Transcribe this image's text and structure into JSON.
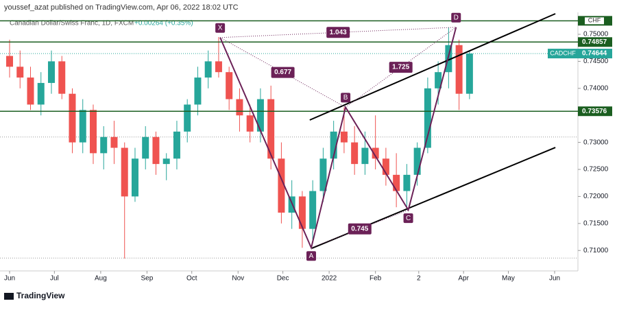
{
  "header": {
    "publisher": "youssef_azat published on TradingView.com, Apr 06, 2022 18:02 UTC",
    "brand": "TradingView"
  },
  "chart_data": {
    "type": "candlestick",
    "title": "Canadian Dollar/Swiss Franc, 1D, FXCM",
    "change": "+0.00264 (+0.35%)",
    "x": [
      0,
      7,
      14,
      21,
      28,
      35,
      42,
      49,
      56,
      63,
      70,
      77,
      84,
      91,
      98,
      105,
      112,
      119,
      126,
      133,
      140,
      147,
      154,
      161,
      168,
      175,
      182,
      189,
      196,
      203,
      210,
      217,
      224,
      231,
      238,
      245,
      252,
      259,
      266,
      273,
      280,
      287,
      294,
      301,
      308
    ],
    "open": [
      0.746,
      0.744,
      0.742,
      0.737,
      0.741,
      0.745,
      0.739,
      0.73,
      0.736,
      0.728,
      0.731,
      0.729,
      0.72,
      0.727,
      0.731,
      0.726,
      0.727,
      0.732,
      0.737,
      0.742,
      0.745,
      0.743,
      0.738,
      0.735,
      0.732,
      0.738,
      0.727,
      0.717,
      0.72,
      0.714,
      0.721,
      0.727,
      0.732,
      0.73,
      0.726,
      0.729,
      0.727,
      0.724,
      0.721,
      0.724,
      0.729,
      0.74,
      0.743,
      0.748,
      0.739
    ],
    "high": [
      0.749,
      0.747,
      0.744,
      0.743,
      0.747,
      0.746,
      0.74,
      0.738,
      0.737,
      0.733,
      0.734,
      0.73,
      0.729,
      0.733,
      0.732,
      0.728,
      0.734,
      0.738,
      0.744,
      0.747,
      0.7495,
      0.744,
      0.74,
      0.737,
      0.74,
      0.7405,
      0.73,
      0.723,
      0.721,
      0.723,
      0.729,
      0.734,
      0.7365,
      0.733,
      0.732,
      0.735,
      0.729,
      0.728,
      0.726,
      0.73,
      0.742,
      0.745,
      0.7513,
      0.749,
      0.747
    ],
    "low": [
      0.742,
      0.74,
      0.736,
      0.735,
      0.739,
      0.738,
      0.728,
      0.728,
      0.726,
      0.725,
      0.726,
      0.7085,
      0.719,
      0.725,
      0.724,
      0.723,
      0.725,
      0.73,
      0.735,
      0.74,
      0.742,
      0.736,
      0.732,
      0.73,
      0.73,
      0.725,
      0.715,
      0.714,
      0.7105,
      0.712,
      0.719,
      0.725,
      0.728,
      0.724,
      0.724,
      0.725,
      0.722,
      0.718,
      0.7175,
      0.722,
      0.728,
      0.737,
      0.74,
      0.736,
      0.738
    ],
    "close": [
      0.744,
      0.742,
      0.737,
      0.741,
      0.745,
      0.739,
      0.73,
      0.736,
      0.728,
      0.731,
      0.729,
      0.72,
      0.727,
      0.731,
      0.726,
      0.727,
      0.732,
      0.737,
      0.742,
      0.745,
      0.743,
      0.738,
      0.735,
      0.732,
      0.738,
      0.727,
      0.717,
      0.72,
      0.714,
      0.721,
      0.727,
      0.732,
      0.73,
      0.726,
      0.729,
      0.727,
      0.724,
      0.721,
      0.724,
      0.729,
      0.74,
      0.743,
      0.748,
      0.739,
      0.74644
    ],
    "up_color": "#26a69a",
    "down_color": "#ef5350",
    "xlim": [
      -6.43,
      380.6
    ],
    "xticks": [
      {
        "value": 0,
        "label": "Jun"
      },
      {
        "value": 30,
        "label": "Jul"
      },
      {
        "value": 61,
        "label": "Aug"
      },
      {
        "value": 92,
        "label": "Sep"
      },
      {
        "value": 122,
        "label": "Oct"
      },
      {
        "value": 153,
        "label": "Nov"
      },
      {
        "value": 183,
        "label": "Dec"
      },
      {
        "value": 214,
        "label": "2022"
      },
      {
        "value": 245,
        "label": "Feb"
      },
      {
        "value": 274,
        "label": "2"
      },
      {
        "value": 304,
        "label": "Apr"
      },
      {
        "value": 334,
        "label": "May"
      },
      {
        "value": 365,
        "label": "Jun"
      }
    ],
    "ylim": [
      0.70622,
      0.75381
    ],
    "yticks": [
      {
        "value": 0.71,
        "label": "0.71000"
      },
      {
        "value": 0.715,
        "label": "0.71500"
      },
      {
        "value": 0.72,
        "label": "0.72000"
      },
      {
        "value": 0.725,
        "label": "0.72500"
      },
      {
        "value": 0.73,
        "label": "0.73000"
      },
      {
        "value": 0.74,
        "label": "0.74000"
      },
      {
        "value": 0.745,
        "label": "0.74500"
      },
      {
        "value": 0.75,
        "label": "0.75000"
      }
    ],
    "levels": [
      0.7525,
      0.74857,
      0.73576
    ],
    "level_color": "#1b5e20",
    "top_tag": "CHF",
    "dotted_levels": [
      0.731,
      0.7086
    ],
    "current": {
      "value": 0.74644,
      "symbol": "CADCHF"
    },
    "pattern": {
      "color": "#6b2157",
      "points": [
        {
          "label": "X",
          "x": 141,
          "y": 0.7494
        },
        {
          "label": "A",
          "x": 202,
          "y": 0.7105
        },
        {
          "label": "B",
          "x": 225,
          "y": 0.7365
        },
        {
          "label": "C",
          "x": 267,
          "y": 0.7175
        },
        {
          "label": "D",
          "x": 299,
          "y": 0.7513
        }
      ],
      "ratios": [
        {
          "label": "1.043",
          "from": 0,
          "to": 4
        },
        {
          "label": "0.677",
          "from": 0,
          "to": 2
        },
        {
          "label": "1.725",
          "from": 2,
          "to": 4
        },
        {
          "label": "0.745",
          "from": 1,
          "to": 3
        }
      ]
    },
    "trendlines": [
      {
        "x": [
          201,
          365.5
        ],
        "y": [
          0.73414,
          0.75381
        ]
      },
      {
        "x": [
          202.5,
          365.5
        ],
        "y": [
          0.71041,
          0.72906
        ]
      }
    ]
  }
}
